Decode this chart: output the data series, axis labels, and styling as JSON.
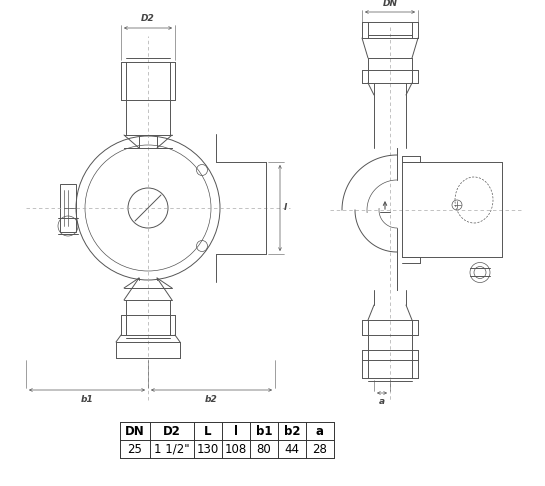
{
  "table_headers": [
    "DN",
    "D2",
    "L",
    "l",
    "b1",
    "b2",
    "a"
  ],
  "table_values": [
    "25",
    "1 1/2\"",
    "130",
    "108",
    "80",
    "44",
    "28"
  ],
  "bg_color": "#ffffff",
  "line_color": "#555555",
  "dim_color": "#555555",
  "label_color": "#444444",
  "label_fontsize": 6.5,
  "table_fontsize": 8.5,
  "fig_width": 5.45,
  "fig_height": 4.86,
  "dpi": 100
}
